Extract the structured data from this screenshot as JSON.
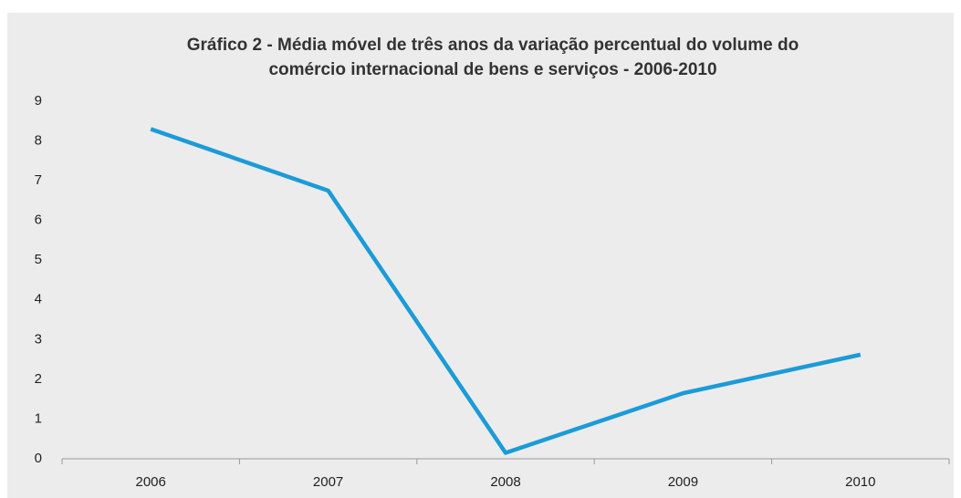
{
  "chart_data": {
    "type": "line",
    "title": [
      "Gráfico 2 - Média móvel de três anos da variação percentual do volume do",
      "comércio internacional de bens e serviços - 2006-2010"
    ],
    "categories": [
      "2006",
      "2007",
      "2008",
      "2009",
      "2010"
    ],
    "series": [
      {
        "color": "#1b9bd7",
        "values": [
          8.3,
          6.75,
          0.15,
          1.65,
          2.62
        ]
      }
    ],
    "ylim": [
      0,
      9
    ],
    "yticks": [
      0,
      1,
      2,
      3,
      4,
      5,
      6,
      7,
      8,
      9
    ]
  }
}
